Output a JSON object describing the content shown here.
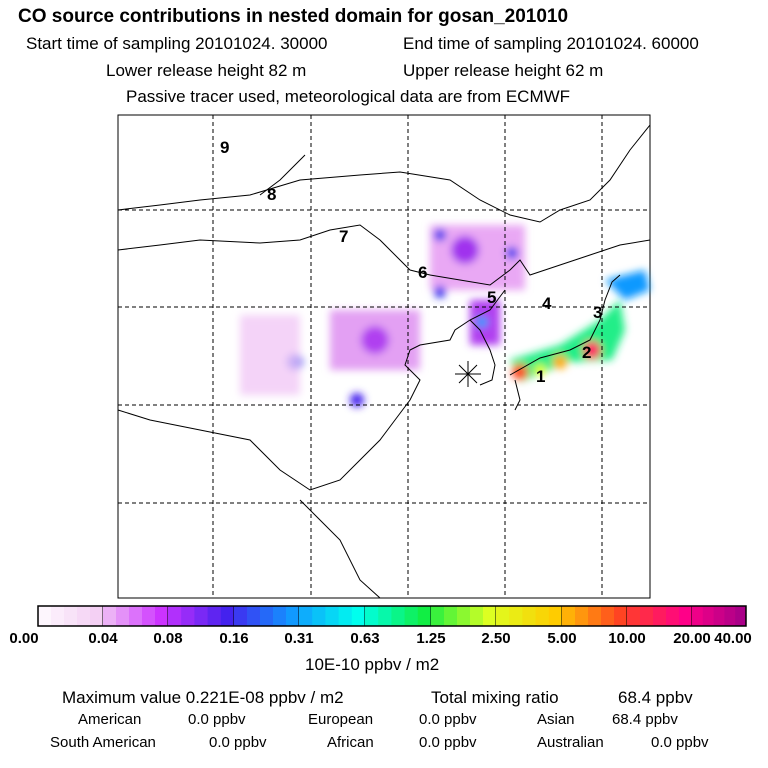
{
  "header": {
    "title": "CO  source contributions in nested domain for gosan_201010",
    "start_time": "Start time of sampling 20101024. 30000",
    "end_time": "End time of sampling 20101024. 60000",
    "lower_release": "Lower release height   82 m",
    "upper_release": "Upper release height   62 m",
    "note": "Passive tracer used, meteorological data are from ECMWF"
  },
  "map": {
    "region_labels": [
      "1",
      "2",
      "3",
      "4",
      "5",
      "6",
      "7",
      "8",
      "9"
    ],
    "receptor_marker": "asterisk-icon"
  },
  "colorbar": {
    "ticks": [
      "0.00",
      "0.04",
      "0.08",
      "0.16",
      "0.31",
      "0.63",
      "1.25",
      "2.50",
      "5.00",
      "10.00",
      "20.00",
      "40.00"
    ],
    "colors": [
      "#f4d0f4",
      "#cc33ff",
      "#4422ee",
      "#1199ff",
      "#00ffee",
      "#11ee44",
      "#ddff22",
      "#ffcc00",
      "#ff4422",
      "#ff0088",
      "#aa0088"
    ],
    "unit": "10E-10 ppbv / m2"
  },
  "stats": {
    "max_label": "Maximum value  0.221E-08 ppbv / m2",
    "total_label": "Total mixing ratio",
    "total_value": "68.4 ppbv",
    "american_label": "American",
    "american_value": "0.0 ppbv",
    "european_label": "European",
    "european_value": "0.0 ppbv",
    "asian_label": "Asian",
    "asian_value": "68.4 ppbv",
    "south_american_label": "South American",
    "south_american_value": "0.0 ppbv",
    "african_label": "African",
    "african_value": "0.0 ppbv",
    "australian_label": "Australian",
    "australian_value": "0.0 ppbv"
  }
}
